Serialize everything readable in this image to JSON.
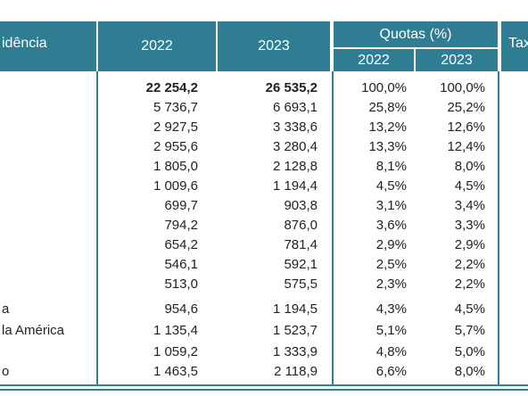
{
  "header": {
    "col_residence": "idência",
    "col_2022": "2022",
    "col_2023": "2023",
    "col_quotas": "Quotas (%)",
    "col_quotas_2022": "2022",
    "col_quotas_2023": "2023",
    "col_tax": "Tax"
  },
  "rows": [
    {
      "label": "",
      "v2022": "22 254,2",
      "v2023": "26 535,2",
      "q2022": "100,0%",
      "q2023": "100,0%"
    },
    {
      "label": "",
      "v2022": "5 736,7",
      "v2023": "6 693,1",
      "q2022": "25,8%",
      "q2023": "25,2%"
    },
    {
      "label": "",
      "v2022": "2 927,5",
      "v2023": "3 338,6",
      "q2022": "13,2%",
      "q2023": "12,6%"
    },
    {
      "label": "",
      "v2022": "2 955,6",
      "v2023": "3 280,4",
      "q2022": "13,3%",
      "q2023": "12,4%"
    },
    {
      "label": "",
      "v2022": "1 805,0",
      "v2023": "2 128,8",
      "q2022": "8,1%",
      "q2023": "8,0%"
    },
    {
      "label": "",
      "v2022": "1 009,6",
      "v2023": "1 194,4",
      "q2022": "4,5%",
      "q2023": "4,5%"
    },
    {
      "label": "",
      "v2022": "699,7",
      "v2023": "903,8",
      "q2022": "3,1%",
      "q2023": "3,4%"
    },
    {
      "label": "",
      "v2022": "794,2",
      "v2023": "876,0",
      "q2022": "3,6%",
      "q2023": "3,3%"
    },
    {
      "label": "",
      "v2022": "654,2",
      "v2023": "781,4",
      "q2022": "2,9%",
      "q2023": "2,9%"
    },
    {
      "label": "",
      "v2022": "546,1",
      "v2023": "592,1",
      "q2022": "2,5%",
      "q2023": "2,2%"
    },
    {
      "label": "",
      "v2022": "513,0",
      "v2023": "575,5",
      "q2022": "2,3%",
      "q2023": "2,2%"
    },
    {
      "label": "a",
      "v2022": "954,6",
      "v2023": "1 194,5",
      "q2022": "4,3%",
      "q2023": "4,5%"
    },
    {
      "label": "la América",
      "v2022": "1 135,4",
      "v2023": "1 523,7",
      "q2022": "5,1%",
      "q2023": "5,7%"
    },
    {
      "label": "",
      "v2022": "1 059,2",
      "v2023": "1 333,9",
      "q2022": "4,8%",
      "q2023": "5,0%"
    },
    {
      "label": "o",
      "v2022": "1 463,5",
      "v2023": "2 118,9",
      "q2022": "6,6%",
      "q2023": "8,0%"
    }
  ]
}
